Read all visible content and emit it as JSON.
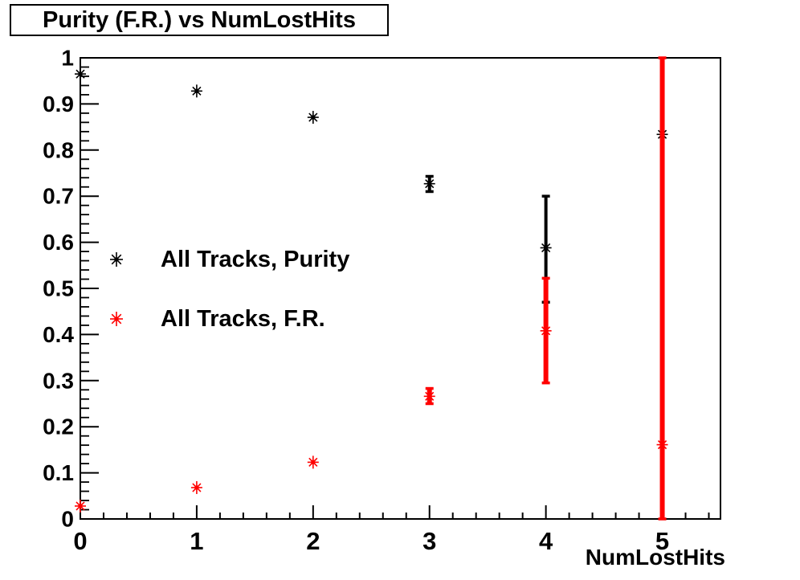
{
  "title_box": {
    "title": "Purity (F.R.) vs NumLostHits"
  },
  "chart_data": {
    "type": "scatter",
    "title": "Purity (F.R.) vs NumLostHits",
    "xlabel": "NumLostHits",
    "ylabel": "",
    "xlim": [
      0,
      5.5
    ],
    "ylim": [
      0,
      1
    ],
    "grid": false,
    "x_tick_values": [
      0,
      1,
      2,
      3,
      4,
      5
    ],
    "x_tick_labels": [
      "0",
      "1",
      "2",
      "3",
      "4",
      "5"
    ],
    "y_tick_values": [
      0,
      0.1,
      0.2,
      0.3,
      0.4,
      0.5,
      0.6,
      0.7,
      0.8,
      0.9,
      1
    ],
    "y_tick_labels": [
      "0",
      "0.1",
      "0.2",
      "0.3",
      "0.4",
      "0.5",
      "0.6",
      "0.7",
      "0.8",
      "0.9",
      "1"
    ],
    "x_minor_step": 0.2,
    "y_minor_step": 0.02,
    "legend_position": "upper-left-inside",
    "legend": [
      {
        "label": "All Tracks, Purity",
        "color": "#000000",
        "marker": "asterisk"
      },
      {
        "label": "All Tracks, F.R.",
        "color": "#ff0000",
        "marker": "asterisk"
      }
    ],
    "series": [
      {
        "name": "All Tracks, Purity",
        "color": "#000000",
        "marker": "asterisk",
        "points": [
          {
            "x": 0,
            "y": 0.965
          },
          {
            "x": 1,
            "y": 0.928
          },
          {
            "x": 2,
            "y": 0.871
          },
          {
            "x": 3,
            "y": 0.727,
            "y_lo": 0.71,
            "y_hi": 0.743
          },
          {
            "x": 4,
            "y": 0.588,
            "y_lo": 0.47,
            "y_hi": 0.7
          },
          {
            "x": 5,
            "y": 0.834
          }
        ]
      },
      {
        "name": "All Tracks, F.R.",
        "color": "#ff0000",
        "marker": "asterisk",
        "points": [
          {
            "x": 0,
            "y": 0.028
          },
          {
            "x": 1,
            "y": 0.068
          },
          {
            "x": 2,
            "y": 0.123
          },
          {
            "x": 3,
            "y": 0.266,
            "y_lo": 0.25,
            "y_hi": 0.283
          },
          {
            "x": 4,
            "y": 0.408,
            "y_lo": 0.295,
            "y_hi": 0.522
          },
          {
            "x": 5,
            "y": 0.161,
            "y_lo": 0.0,
            "y_hi": 1.0
          }
        ]
      }
    ]
  }
}
